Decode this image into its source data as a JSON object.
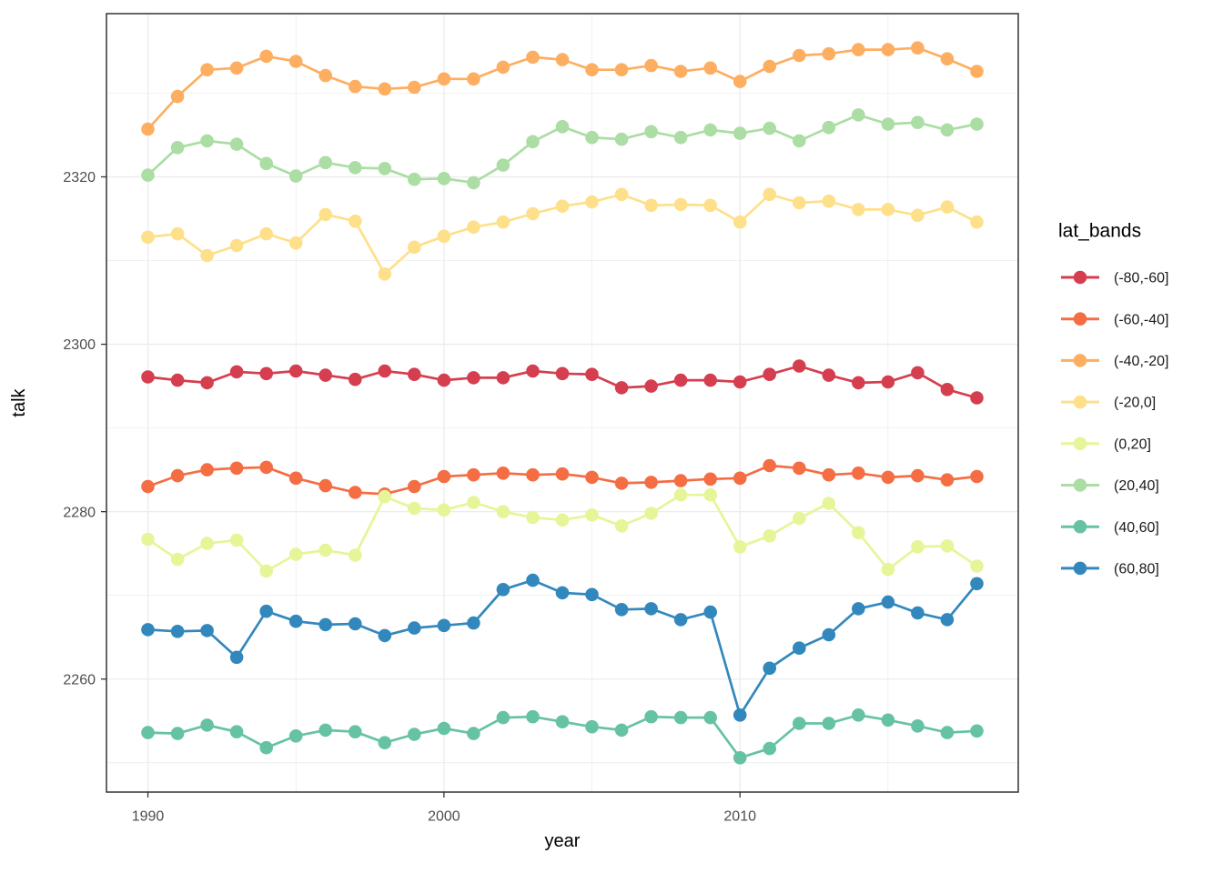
{
  "chart_data": {
    "type": "line",
    "title": "",
    "xlabel": "year",
    "ylabel": "talk",
    "legend_title": "lat_bands",
    "legend_position": "right",
    "grid": true,
    "panel_background": "#ffffff",
    "panel_border_color": "#333333",
    "grid_color": "#ebebeb",
    "tick_color": "#333333",
    "tick_label_color": "#4d4d4d",
    "xlim": [
      1988.6,
      2019.4
    ],
    "ylim": [
      2246.5,
      2339.5
    ],
    "x_ticks_major": [
      1990,
      2000,
      2010
    ],
    "x_ticks_minor": [
      1995,
      2005,
      2015
    ],
    "y_ticks_major": [
      2260,
      2280,
      2300,
      2320
    ],
    "y_ticks_minor": [
      2250,
      2270,
      2290,
      2310,
      2330
    ],
    "x": [
      1990,
      1991,
      1992,
      1993,
      1994,
      1995,
      1996,
      1997,
      1998,
      1999,
      2000,
      2001,
      2002,
      2003,
      2004,
      2005,
      2006,
      2007,
      2008,
      2009,
      2010,
      2011,
      2012,
      2013,
      2014,
      2015,
      2016,
      2017,
      2018
    ],
    "series": [
      {
        "name": "(-80,-60]",
        "color": "#d53e4f",
        "values": [
          2296.1,
          2295.7,
          2295.4,
          2296.7,
          2296.5,
          2296.8,
          2296.3,
          2295.8,
          2296.8,
          2296.4,
          2295.7,
          2296.0,
          2296.0,
          2296.8,
          2296.5,
          2296.4,
          2294.8,
          2295.0,
          2295.7,
          2295.7,
          2295.5,
          2296.4,
          2297.4,
          2296.3,
          2295.4,
          2295.5,
          2296.6,
          2294.6,
          2293.6
        ]
      },
      {
        "name": "(-60,-40]",
        "color": "#f46d43",
        "values": [
          2283.0,
          2284.3,
          2285.0,
          2285.2,
          2285.3,
          2284.0,
          2283.1,
          2282.3,
          2282.1,
          2283.0,
          2284.2,
          2284.4,
          2284.6,
          2284.4,
          2284.5,
          2284.1,
          2283.4,
          2283.5,
          2283.7,
          2283.9,
          2284.0,
          2285.5,
          2285.2,
          2284.4,
          2284.6,
          2284.1,
          2284.3,
          2283.8,
          2284.2
        ]
      },
      {
        "name": "(-40,-20]",
        "color": "#fdae61",
        "values": [
          2325.7,
          2329.6,
          2332.8,
          2333.0,
          2334.4,
          2333.8,
          2332.1,
          2330.8,
          2330.5,
          2330.7,
          2331.7,
          2331.7,
          2333.1,
          2334.3,
          2334.0,
          2332.8,
          2332.8,
          2333.3,
          2332.6,
          2333.0,
          2331.4,
          2333.2,
          2334.5,
          2334.7,
          2335.2,
          2335.2,
          2335.4,
          2334.1,
          2332.6
        ]
      },
      {
        "name": "(-20,0]",
        "color": "#fee08b",
        "values": [
          2312.8,
          2313.2,
          2310.6,
          2311.8,
          2313.2,
          2312.1,
          2315.5,
          2314.7,
          2308.4,
          2311.6,
          2312.9,
          2314.0,
          2314.6,
          2315.6,
          2316.5,
          2317.0,
          2317.9,
          2316.6,
          2316.7,
          2316.6,
          2314.6,
          2317.9,
          2316.9,
          2317.1,
          2316.1,
          2316.1,
          2315.4,
          2316.4,
          2314.6
        ]
      },
      {
        "name": "(0,20]",
        "color": "#e6f598",
        "values": [
          2276.7,
          2274.3,
          2276.2,
          2276.6,
          2272.9,
          2274.9,
          2275.4,
          2274.8,
          2281.8,
          2280.4,
          2280.2,
          2281.1,
          2280.0,
          2279.3,
          2279.0,
          2279.6,
          2278.3,
          2279.8,
          2282.0,
          2282.0,
          2275.8,
          2277.1,
          2279.2,
          2281.0,
          2277.5,
          2273.1,
          2275.8,
          2275.9,
          2273.5
        ]
      },
      {
        "name": "(20,40]",
        "color": "#abdda4",
        "values": [
          2320.2,
          2323.5,
          2324.3,
          2323.9,
          2321.6,
          2320.1,
          2321.7,
          2321.1,
          2321.0,
          2319.7,
          2319.8,
          2319.3,
          2321.4,
          2324.2,
          2326.0,
          2324.7,
          2324.5,
          2325.4,
          2324.7,
          2325.6,
          2325.2,
          2325.8,
          2324.3,
          2325.9,
          2327.4,
          2326.3,
          2326.5,
          2325.6,
          2326.3
        ]
      },
      {
        "name": "(40,60]",
        "color": "#66c2a5",
        "values": [
          2253.6,
          2253.5,
          2254.5,
          2253.7,
          2251.8,
          2253.2,
          2253.9,
          2253.7,
          2252.4,
          2253.4,
          2254.1,
          2253.5,
          2255.4,
          2255.5,
          2254.9,
          2254.3,
          2253.9,
          2255.5,
          2255.4,
          2255.4,
          2250.6,
          2251.7,
          2254.7,
          2254.7,
          2255.7,
          2255.1,
          2254.4,
          2253.6,
          2253.8
        ]
      },
      {
        "name": "(60,80]",
        "color": "#3288bd",
        "values": [
          2265.9,
          2265.7,
          2265.8,
          2262.6,
          2268.1,
          2266.9,
          2266.5,
          2266.6,
          2265.2,
          2266.1,
          2266.4,
          2266.7,
          2270.7,
          2271.8,
          2270.3,
          2270.1,
          2268.3,
          2268.4,
          2267.1,
          2268.0,
          2255.7,
          2261.3,
          2263.7,
          2265.3,
          2268.4,
          2269.2,
          2267.9,
          2267.1,
          2271.4
        ]
      }
    ]
  }
}
